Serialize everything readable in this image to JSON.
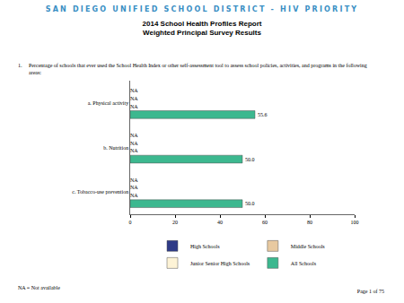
{
  "header": {
    "title": "SAN DIEGO UNIFIED SCHOOL DISTRICT - HIV PRIORITY",
    "subtitle": [
      "2014 School Health Profiles Report",
      "Weighted Principal Survey Results"
    ]
  },
  "question": {
    "number": "1.",
    "text": "Percentage of schools that ever used the School Health Index or other self-assessment tool to assess school policies, activities, and programs in the following areas:"
  },
  "chart_data": {
    "type": "bar",
    "orientation": "horizontal",
    "categories": [
      "a. Physical activity",
      "b. Nutrition",
      "c. Tobacco-use prevention"
    ],
    "series": [
      {
        "name": "High Schools",
        "color": "#2e3a87",
        "values": [
          null,
          null,
          null
        ],
        "value_labels": [
          "NA",
          "NA",
          "NA"
        ]
      },
      {
        "name": "Middle Schools",
        "color": "#e8c9a0",
        "values": [
          null,
          null,
          null
        ],
        "value_labels": [
          "NA",
          "NA",
          "NA"
        ]
      },
      {
        "name": "Junior Senior High Schools",
        "color": "#fdf3d6",
        "values": [
          null,
          null,
          null
        ],
        "value_labels": [
          "NA",
          "NA",
          "NA"
        ]
      },
      {
        "name": "All Schools",
        "color": "#3cb88f",
        "values": [
          55.6,
          50,
          50
        ],
        "value_labels": [
          "55.6",
          "50.0",
          "50.0"
        ]
      }
    ],
    "xlim": [
      0,
      100
    ],
    "xticks": [
      0,
      20,
      40,
      60,
      80,
      100
    ],
    "grid": false,
    "legend": "bottom",
    "data_labels": true
  },
  "footer": {
    "note": "NA = Not available",
    "page": "Page 1 of 75"
  }
}
